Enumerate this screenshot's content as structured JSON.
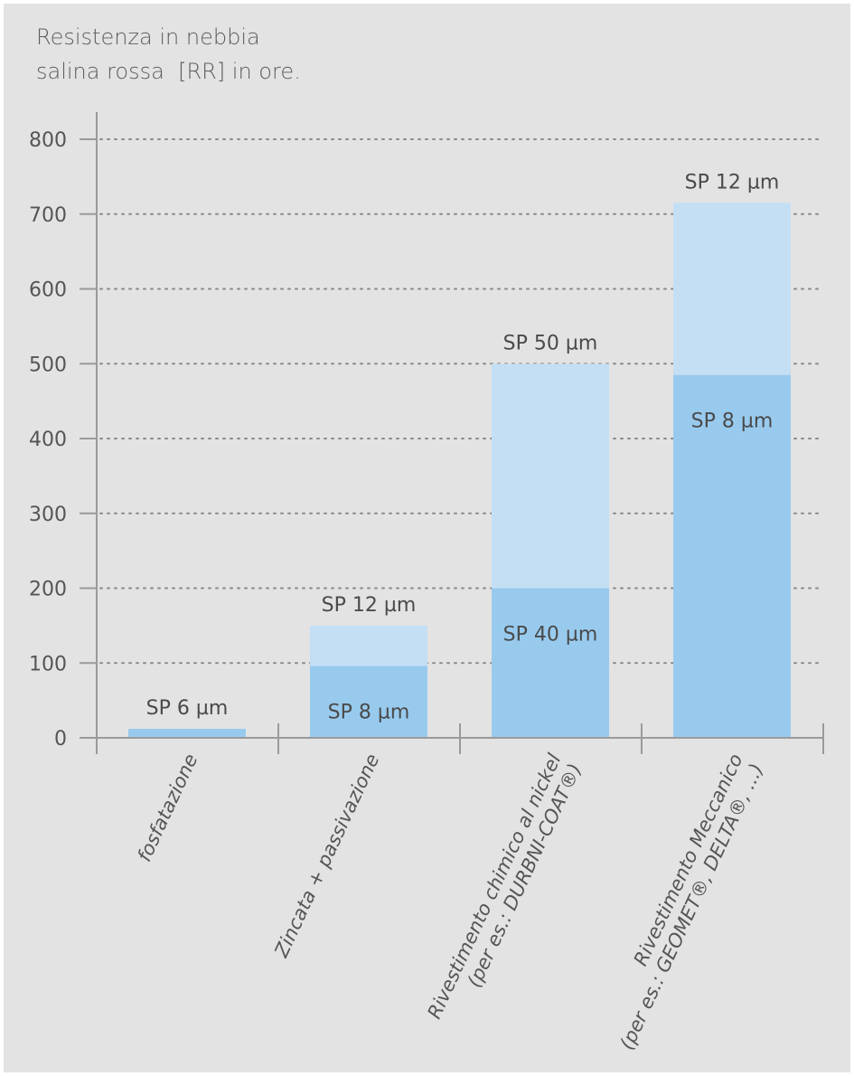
{
  "chart_data": {
    "type": "bar",
    "stacked": true,
    "ylabel_lines": [
      "Resistenza in nebbia",
      "salina rossa  [RR] in ore."
    ],
    "ylim": [
      0,
      800
    ],
    "yticks": [
      0,
      100,
      200,
      300,
      400,
      500,
      600,
      700,
      800
    ],
    "grid": "horizontal dotted",
    "categories": [
      [
        "fosfatazione"
      ],
      [
        "Zincata + passivazione"
      ],
      [
        "Rivestimento chimico al nickel",
        "(per es.: DURBNI-COAT®)"
      ],
      [
        "Rivestimento Meccanico",
        "(per es.: GEOMET®, DELTA®, ...)"
      ]
    ],
    "bars": [
      {
        "base": 12,
        "base_label": "",
        "total": 12,
        "top_label": "SP 6 µm"
      },
      {
        "base": 96,
        "base_label": "SP 8 µm",
        "total": 150,
        "top_label": "SP 12 µm"
      },
      {
        "base": 200,
        "base_label": "SP 40 µm",
        "total": 500,
        "top_label": "SP 50 µm"
      },
      {
        "base": 485,
        "base_label": "SP 8 µm",
        "total": 715,
        "top_label": "SP 12 µm"
      }
    ],
    "colors": {
      "base": "#98caee",
      "top": "#c4dff4",
      "grid": "#8a8a8a",
      "axis": "#9a9a9a"
    }
  }
}
